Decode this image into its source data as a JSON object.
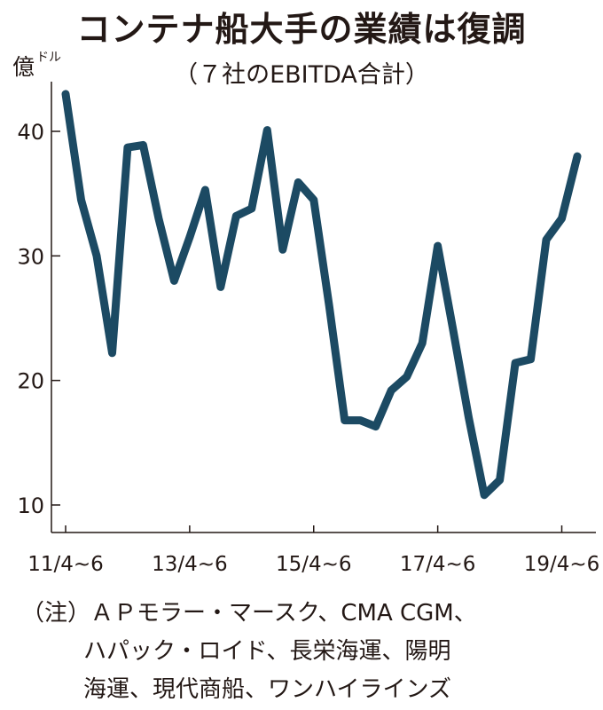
{
  "title": "コンテナ船大手の業績は復調",
  "subtitle": "（７社のEBITDA合計）",
  "note": {
    "line1": "（注）ＡＰモラー・マースク、CMA CGM、",
    "line2": "ハパック・ロイド、長栄海運、陽明",
    "line3": "海運、現代商船、ワンハイラインズ"
  },
  "colors": {
    "line": "#1c4a63",
    "axis": "#231815"
  },
  "chart_data": {
    "type": "line",
    "title": "コンテナ船大手の業績は復調",
    "subtitle": "（７社のEBITDA合計）",
    "ylabel": "億ドル",
    "ylabel_main": "億",
    "ylabel_unit": "ドル",
    "xlabel": "",
    "ylim": [
      8.5,
      44
    ],
    "yticks": [
      10,
      20,
      30,
      40
    ],
    "x_tick_labels": [
      {
        "label": "11/4~6",
        "index": 0
      },
      {
        "label": "13/4~6",
        "index": 8
      },
      {
        "label": "15/4~6",
        "index": 16
      },
      {
        "label": "17/4~6",
        "index": 24
      },
      {
        "label": "19/4~6",
        "index": 32
      }
    ],
    "grid": false,
    "series": [
      {
        "values": [
          43.0,
          34.5,
          30.0,
          22.2,
          38.7,
          38.9,
          33.0,
          28.0,
          31.5,
          35.3,
          27.5,
          33.2,
          33.8,
          40.1,
          30.5,
          35.9,
          34.5,
          26.0,
          16.8,
          16.8,
          16.3,
          19.2,
          20.3,
          23.0,
          30.8,
          24.0,
          17.0,
          10.8,
          12.0,
          21.4,
          21.7,
          31.3,
          33.0,
          38.0
        ]
      }
    ]
  }
}
